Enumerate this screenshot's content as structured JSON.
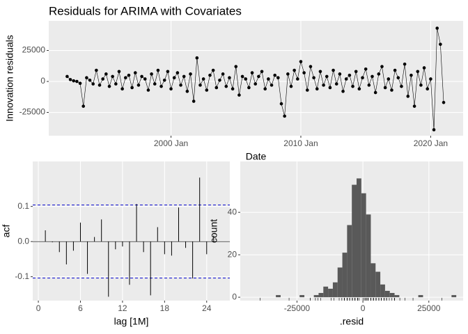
{
  "chart_data": [
    {
      "type": "line",
      "title": "Residuals for ARIMA with Covariates",
      "x_label": "Date",
      "y_label": "Innovation residuals",
      "x": [
        "1992-01",
        "1992-04",
        "1992-07",
        "1992-10",
        "1993-01",
        "1993-04",
        "1993-07",
        "1993-10",
        "1994-01",
        "1994-04",
        "1994-07",
        "1994-10",
        "1995-01",
        "1995-04",
        "1995-07",
        "1995-10",
        "1996-01",
        "1996-04",
        "1996-07",
        "1996-10",
        "1997-01",
        "1997-04",
        "1997-07",
        "1997-10",
        "1998-01",
        "1998-04",
        "1998-07",
        "1998-10",
        "1999-01",
        "1999-04",
        "1999-07",
        "1999-10",
        "2000-01",
        "2000-04",
        "2000-07",
        "2000-10",
        "2001-01",
        "2001-04",
        "2001-07",
        "2001-10",
        "2002-01",
        "2002-04",
        "2002-07",
        "2002-10",
        "2003-01",
        "2003-04",
        "2003-07",
        "2003-10",
        "2004-01",
        "2004-04",
        "2004-07",
        "2004-10",
        "2005-01",
        "2005-04",
        "2005-07",
        "2005-10",
        "2006-01",
        "2006-04",
        "2006-07",
        "2006-10",
        "2007-01",
        "2007-04",
        "2007-07",
        "2007-10",
        "2008-01",
        "2008-04",
        "2008-07",
        "2008-10",
        "2009-01",
        "2009-04",
        "2009-07",
        "2009-10",
        "2010-01",
        "2010-04",
        "2010-07",
        "2010-10",
        "2011-01",
        "2011-04",
        "2011-07",
        "2011-10",
        "2012-01",
        "2012-04",
        "2012-07",
        "2012-10",
        "2013-01",
        "2013-04",
        "2013-07",
        "2013-10",
        "2014-01",
        "2014-04",
        "2014-07",
        "2014-10",
        "2015-01",
        "2015-04",
        "2015-07",
        "2015-10",
        "2016-01",
        "2016-04",
        "2016-07",
        "2016-10",
        "2017-01",
        "2017-04",
        "2017-07",
        "2017-10",
        "2018-01",
        "2018-04",
        "2018-07",
        "2018-10",
        "2019-01",
        "2019-04",
        "2019-07",
        "2019-10",
        "2020-01",
        "2020-04",
        "2020-07",
        "2020-10",
        "2021-01"
      ],
      "series": [
        {
          "color": "#000000",
          "values": [
            4000,
            1500,
            500,
            0,
            -1500,
            -20000,
            3000,
            1000,
            -2000,
            9000,
            -3000,
            2000,
            6000,
            -4000,
            4000,
            -2000,
            8000,
            -6000,
            3000,
            5000,
            -5000,
            7000,
            -3000,
            4000,
            2000,
            -7000,
            6000,
            -2000,
            9000,
            -4000,
            1000,
            8000,
            -6000,
            3000,
            7000,
            -3000,
            4000,
            -8000,
            6000,
            -16000,
            19000,
            -3000,
            2000,
            -7000,
            5000,
            9000,
            -5000,
            1000,
            6000,
            -4000,
            3000,
            -6000,
            12000,
            -11000,
            4000,
            2000,
            -5000,
            7000,
            -2000,
            4000,
            8000,
            -6000,
            2000,
            -3000,
            5000,
            3000,
            -18000,
            -28000,
            6000,
            -4000,
            9000,
            2000,
            16000,
            7000,
            -7000,
            12000,
            3000,
            -6000,
            8000,
            -3000,
            4000,
            -5000,
            9000,
            -2000,
            6000,
            -8000,
            2000,
            5000,
            -4000,
            8000,
            -6000,
            3000,
            10000,
            -3000,
            4000,
            -9000,
            6000,
            12000,
            -5000,
            2000,
            -7000,
            9000,
            3000,
            -4000,
            14000,
            -12000,
            5000,
            -20000,
            8000,
            -3000,
            11000,
            -6000,
            2000,
            -39000,
            43000,
            30000,
            -17000
          ]
        }
      ],
      "xlim": [
        "1990-08",
        "2022-07"
      ],
      "xticks": [
        {
          "value": "2000-01",
          "label": "2000 Jan"
        },
        {
          "value": "2010-01",
          "label": "2010 Jan"
        },
        {
          "value": "2020-01",
          "label": "2020 Jan"
        }
      ],
      "ylim": [
        -43800,
        48900
      ],
      "yticks": [
        -25000,
        0,
        25000
      ],
      "grid": true
    },
    {
      "type": "acf",
      "x_label": "lag [1M]",
      "y_label": "acf",
      "x": [
        1,
        2,
        3,
        4,
        5,
        6,
        7,
        8,
        9,
        10,
        11,
        12,
        13,
        14,
        15,
        16,
        17,
        18,
        19,
        20,
        21,
        22,
        23,
        24,
        25
      ],
      "values": [
        0.032,
        -0.002,
        -0.03,
        -0.065,
        -0.026,
        0.054,
        -0.092,
        0.013,
        0.063,
        -0.157,
        -0.022,
        -0.014,
        -0.123,
        0.107,
        -0.03,
        -0.153,
        0.041,
        -0.036,
        -0.04,
        0.097,
        -0.018,
        -0.105,
        0.182,
        -0.036,
        0.017
      ],
      "confidence_bounds": [
        -0.104,
        0.104
      ],
      "bound_color": "#0000cc",
      "color": "#000000",
      "xlim": [
        -0.8,
        27.3
      ],
      "xticks": [
        0,
        6,
        12,
        18,
        24
      ],
      "ylim": [
        -0.168,
        0.228
      ],
      "yticks": [
        -0.1,
        {
          "value": 0,
          "label": "0.0"
        },
        0.1
      ],
      "grid": true
    },
    {
      "type": "histogram",
      "x_label": ".resid",
      "y_label": "count",
      "color": "#595959",
      "bins": [
        -33000,
        -31200,
        -29400,
        -27600,
        -25800,
        -24000,
        -22200,
        -20400,
        -18600,
        -16800,
        -15000,
        -13200,
        -11400,
        -9600,
        -7800,
        -6000,
        -4200,
        -2400,
        -600,
        1200,
        3000,
        4800,
        6600,
        8400,
        10200,
        12000,
        13800,
        15600,
        17400,
        19200,
        21000,
        22800,
        24600,
        26400,
        28200,
        30000,
        31800,
        33600,
        35400
      ],
      "values": [
        1,
        0,
        0,
        0,
        0,
        1,
        0,
        0,
        1,
        2,
        5,
        4,
        7,
        14,
        21,
        34,
        53,
        56,
        49,
        39,
        16,
        12,
        6,
        3,
        2,
        1,
        0,
        0,
        0,
        0,
        1,
        0,
        0,
        0,
        0,
        0,
        0,
        1
      ],
      "xlim": [
        -46500,
        38000
      ],
      "xticks": [
        -25000,
        0,
        25000
      ],
      "ylim": [
        -1.6,
        64
      ],
      "yticks": [
        0,
        20,
        40
      ],
      "grid": true
    }
  ]
}
